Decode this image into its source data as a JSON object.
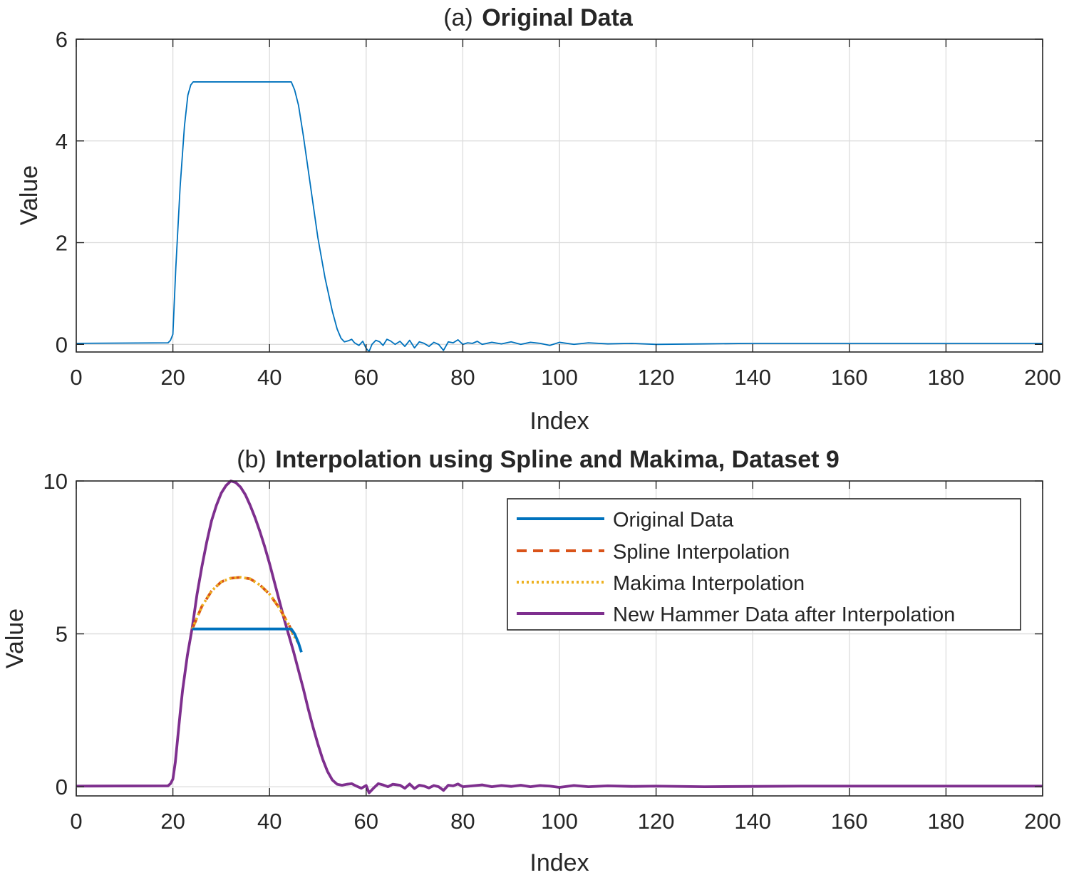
{
  "chart_data": [
    {
      "type": "line",
      "title_prefix": "(a)",
      "title": "Original Data",
      "xlabel": "Index",
      "ylabel": "Value",
      "xlim": [
        0,
        200
      ],
      "ylim": [
        -0.15,
        6
      ],
      "xticks": [
        0,
        20,
        40,
        60,
        80,
        100,
        120,
        140,
        160,
        180,
        200
      ],
      "yticks": [
        0,
        2,
        4,
        6
      ],
      "grid": true,
      "series": [
        {
          "color": "#0072BD",
          "x": [
            0,
            19,
            19.5,
            20,
            20.6,
            21.5,
            22.4,
            23.1,
            23.7,
            24.2,
            25,
            30,
            35,
            40,
            44.5,
            45.2,
            46,
            47,
            48.5,
            50,
            51.5,
            53,
            54,
            54.8,
            55.5,
            56.3,
            57,
            57.6,
            58.5,
            59.3,
            60,
            60.6,
            61.2,
            62,
            62.8,
            63.5,
            64.3,
            65,
            66,
            67,
            68,
            69,
            70,
            71,
            72,
            73,
            74,
            75,
            76,
            77,
            78,
            79,
            80,
            81,
            82,
            83,
            84,
            86,
            88,
            90,
            92,
            94,
            96,
            98,
            100,
            103,
            106,
            110,
            115,
            120,
            130,
            140,
            150,
            160,
            170,
            180,
            190,
            200
          ],
          "y": [
            0.02,
            0.03,
            0.08,
            0.2,
            1.5,
            3.1,
            4.3,
            4.9,
            5.1,
            5.16,
            5.16,
            5.16,
            5.16,
            5.16,
            5.16,
            5.0,
            4.7,
            4.1,
            3.1,
            2.1,
            1.3,
            0.65,
            0.3,
            0.12,
            0.05,
            0.07,
            0.1,
            0.03,
            -0.02,
            0.06,
            -0.08,
            -0.14,
            0.0,
            0.08,
            0.05,
            -0.02,
            0.1,
            0.07,
            0.0,
            0.06,
            -0.04,
            0.08,
            -0.07,
            0.05,
            0.02,
            -0.04,
            0.04,
            0.0,
            -0.12,
            0.05,
            0.03,
            0.09,
            0.0,
            0.03,
            0.02,
            0.06,
            0.0,
            0.04,
            0.01,
            0.05,
            0.0,
            0.04,
            0.02,
            -0.02,
            0.04,
            0.0,
            0.03,
            0.01,
            0.02,
            0.0,
            0.01,
            0.02,
            0.02,
            0.02,
            0.02,
            0.02,
            0.02,
            0.02
          ]
        }
      ]
    },
    {
      "type": "line",
      "title_prefix": "(b)",
      "title": "Interpolation using Spline and Makima, Dataset 9",
      "xlabel": "Index",
      "ylabel": "Value",
      "xlim": [
        0,
        200
      ],
      "ylim": [
        -0.3,
        10
      ],
      "xticks": [
        0,
        20,
        40,
        60,
        80,
        100,
        120,
        140,
        160,
        180,
        200
      ],
      "yticks": [
        0,
        5,
        10
      ],
      "grid": true,
      "legend_position": "top-right",
      "series": [
        {
          "name": "Original Data",
          "color": "#0072BD",
          "style": "solid",
          "x": [
            24,
            28,
            32,
            36,
            40,
            44.5,
            45.2,
            46,
            46.6
          ],
          "y": [
            5.16,
            5.16,
            5.16,
            5.16,
            5.16,
            5.16,
            5.0,
            4.7,
            4.4
          ]
        },
        {
          "name": "Spline Interpolation",
          "color": "#D95319",
          "style": "dashed",
          "x": [
            24,
            26,
            28,
            30,
            32,
            34,
            36,
            38,
            40,
            42,
            44,
            45,
            46
          ],
          "y": [
            5.16,
            5.9,
            6.4,
            6.7,
            6.82,
            6.85,
            6.8,
            6.6,
            6.3,
            5.85,
            5.3,
            4.95,
            4.7
          ]
        },
        {
          "name": "Makima Interpolation",
          "color": "#EDB120",
          "style": "dotted",
          "x": [
            24,
            26,
            28,
            30,
            32,
            34,
            36,
            38,
            40,
            42,
            44,
            45,
            46
          ],
          "y": [
            5.16,
            5.9,
            6.4,
            6.7,
            6.82,
            6.85,
            6.8,
            6.6,
            6.3,
            5.85,
            5.3,
            4.95,
            4.7
          ]
        },
        {
          "name": "New Hammer Data after Interpolation",
          "color": "#7E2F8E",
          "style": "solid",
          "x": [
            0,
            19,
            19.5,
            20,
            20.5,
            21,
            21.5,
            22,
            23,
            24,
            25,
            26,
            27,
            28,
            29,
            30,
            31,
            32,
            33,
            34,
            35,
            36,
            37,
            38,
            39,
            40,
            41,
            42,
            43,
            44,
            45,
            46,
            47,
            48,
            49,
            50,
            51,
            52,
            53,
            54,
            55,
            56,
            57,
            58,
            59,
            60,
            60.6,
            61.5,
            62.5,
            63.5,
            64.5,
            65.5,
            67,
            68,
            69,
            70,
            71,
            72,
            73,
            74,
            75,
            76,
            77,
            78,
            79,
            80,
            82,
            84,
            86,
            88,
            90,
            92,
            94,
            96,
            98,
            100,
            103,
            106,
            110,
            115,
            120,
            130,
            140,
            150,
            160,
            170,
            180,
            190,
            200
          ],
          "y": [
            0.02,
            0.03,
            0.1,
            0.25,
            0.8,
            1.6,
            2.4,
            3.15,
            4.3,
            5.2,
            6.3,
            7.2,
            8.0,
            8.7,
            9.2,
            9.6,
            9.85,
            10.0,
            9.95,
            9.8,
            9.55,
            9.2,
            8.8,
            8.35,
            7.85,
            7.3,
            6.7,
            6.1,
            5.5,
            4.95,
            4.4,
            3.8,
            3.2,
            2.55,
            1.95,
            1.4,
            0.9,
            0.5,
            0.22,
            0.08,
            0.05,
            0.08,
            0.1,
            0.02,
            -0.05,
            0.04,
            -0.2,
            -0.05,
            0.1,
            0.06,
            0.0,
            0.08,
            0.05,
            -0.05,
            0.09,
            -0.06,
            0.05,
            0.02,
            -0.04,
            0.04,
            0.0,
            -0.12,
            0.05,
            0.03,
            0.09,
            0.0,
            0.03,
            0.06,
            0.0,
            0.04,
            0.01,
            0.05,
            0.0,
            0.04,
            0.02,
            -0.02,
            0.04,
            0.0,
            0.03,
            0.01,
            0.02,
            0.0,
            0.01,
            0.02,
            0.02,
            0.02,
            0.02,
            0.02,
            0.02
          ]
        }
      ]
    }
  ]
}
